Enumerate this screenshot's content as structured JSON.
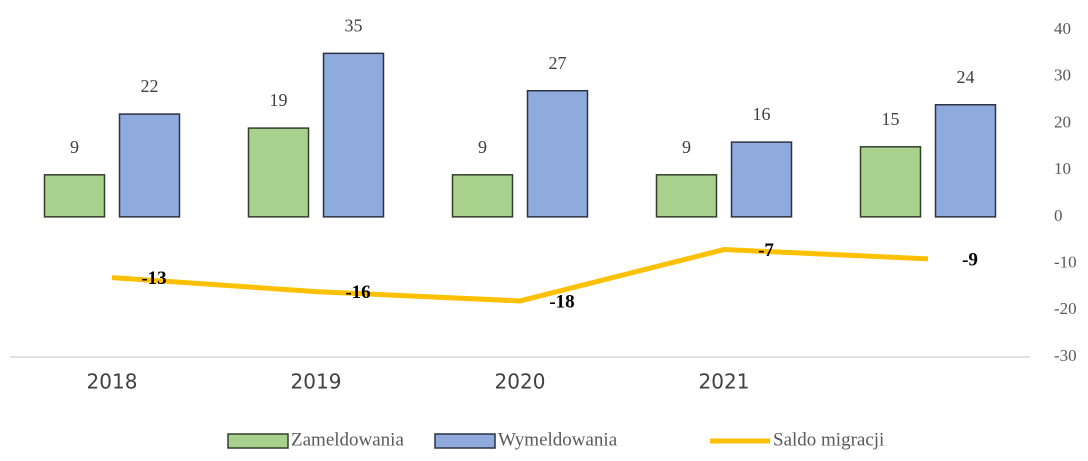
{
  "chart_data": {
    "type": "bar",
    "categories": [
      "2018",
      "2019",
      "2020",
      "2021",
      null
    ],
    "series": [
      {
        "name": "Zameldowania",
        "type": "bar",
        "color": "#a9d18e",
        "values": [
          9,
          19,
          9,
          9,
          15
        ]
      },
      {
        "name": "Wymeldowania",
        "type": "bar",
        "color": "#8faadc",
        "values": [
          22,
          35,
          27,
          16,
          24
        ]
      },
      {
        "name": "Saldo migracji",
        "type": "line",
        "color": "#ffc000",
        "values": [
          -13,
          -16,
          -18,
          -7,
          -9
        ]
      }
    ],
    "ylim": [
      -30,
      40
    ],
    "yticks": [
      -30,
      -20,
      -10,
      0,
      10,
      20,
      30,
      40
    ],
    "y_axis_side": "right",
    "grid": false,
    "legend": "bottom"
  }
}
